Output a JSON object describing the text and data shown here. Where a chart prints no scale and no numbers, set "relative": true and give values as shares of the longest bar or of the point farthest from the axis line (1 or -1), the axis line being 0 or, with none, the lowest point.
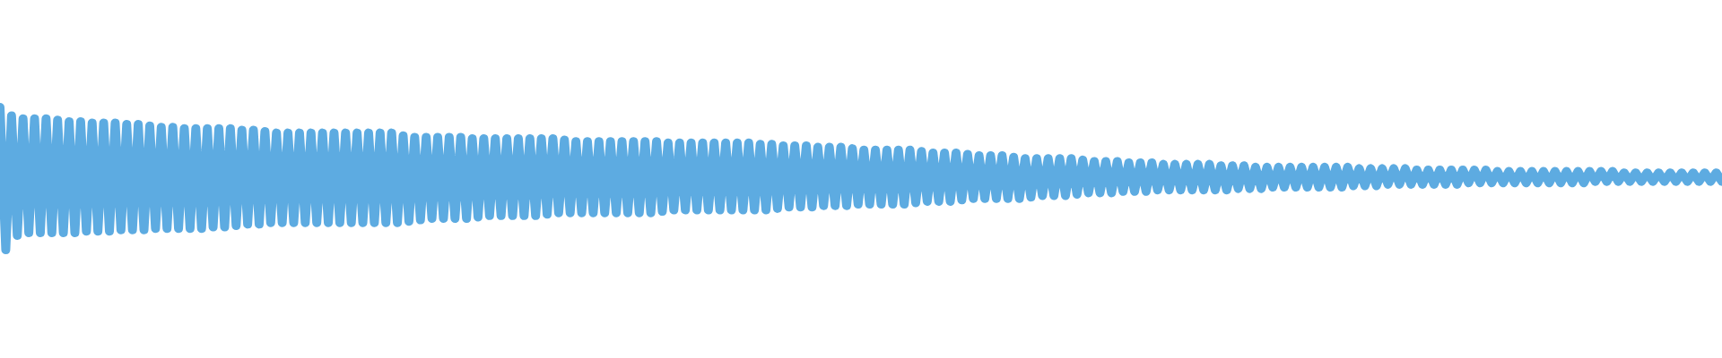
{
  "chart_data": {
    "type": "line",
    "relative": true,
    "color": "#5dabe1",
    "categories": [
      null,
      null,
      null,
      null,
      null,
      null,
      null,
      null,
      null,
      null,
      null,
      null,
      null,
      null,
      null,
      null,
      null,
      null,
      null,
      null,
      null,
      null,
      null,
      null,
      null,
      null,
      null,
      null,
      null,
      null,
      null,
      null,
      null,
      null,
      null,
      null,
      null,
      null,
      null,
      null,
      null,
      null,
      null,
      null,
      null,
      null,
      null,
      null,
      null,
      null,
      null,
      null,
      null,
      null,
      null,
      null,
      null,
      null,
      null,
      null,
      null,
      null,
      null,
      null,
      null,
      null,
      null,
      null,
      null,
      null,
      null,
      null,
      null,
      null,
      null,
      null,
      null,
      null,
      null,
      null,
      null,
      null,
      null,
      null,
      null,
      null,
      null,
      null,
      null,
      null,
      null,
      null,
      null,
      null,
      null,
      null,
      null,
      null,
      null,
      null,
      null,
      null,
      null,
      null,
      null,
      null,
      null,
      null,
      null,
      null,
      null,
      null,
      null,
      null,
      null,
      null,
      null,
      null,
      null,
      null,
      null,
      null,
      null,
      null,
      null,
      null,
      null,
      null,
      null,
      null,
      null,
      null,
      null,
      null,
      null,
      null,
      null,
      null,
      null,
      null,
      null,
      null,
      null,
      null,
      null,
      null,
      null,
      null,
      null,
      null,
      null,
      null,
      null,
      null,
      null,
      null,
      null,
      null,
      null,
      null,
      null,
      null,
      null,
      null,
      null,
      null,
      null,
      null,
      null,
      null,
      null,
      null,
      null,
      null,
      null,
      null,
      null,
      null,
      null,
      null,
      null,
      null,
      null,
      null,
      null,
      null,
      null,
      null,
      null,
      null,
      null,
      null,
      null,
      null,
      null,
      null,
      null,
      null,
      null,
      null,
      null,
      null,
      null,
      null,
      null,
      null,
      null,
      null,
      null,
      null,
      null,
      null,
      null,
      null,
      null,
      null,
      null,
      null,
      null,
      null,
      null,
      null,
      null,
      null,
      null,
      null,
      null,
      null,
      null,
      null,
      null,
      null,
      null,
      null,
      null,
      null,
      null,
      null,
      null,
      null,
      null,
      null,
      null,
      null,
      null,
      null,
      null,
      null,
      null,
      null,
      null,
      null,
      null,
      null,
      null,
      null,
      null,
      null,
      null,
      null,
      null,
      null,
      null,
      null,
      null,
      null,
      null,
      null,
      null,
      null,
      null,
      null,
      null,
      null,
      null,
      null,
      null,
      null,
      null,
      null,
      null,
      null,
      null,
      null,
      null,
      null,
      null,
      null,
      null,
      null,
      null,
      null,
      null,
      null,
      null,
      null,
      null,
      null,
      null,
      null
    ],
    "values": [
      1.0,
      0.0,
      0.94,
      0.1,
      0.92,
      0.12,
      0.92,
      0.12,
      0.92,
      0.12,
      0.91,
      0.12,
      0.9,
      0.12,
      0.9,
      0.13,
      0.89,
      0.13,
      0.89,
      0.13,
      0.89,
      0.14,
      0.88,
      0.14,
      0.88,
      0.14,
      0.87,
      0.15,
      0.86,
      0.15,
      0.86,
      0.15,
      0.85,
      0.15,
      0.85,
      0.15,
      0.85,
      0.16,
      0.85,
      0.16,
      0.85,
      0.17,
      0.84,
      0.18,
      0.84,
      0.18,
      0.83,
      0.19,
      0.82,
      0.19,
      0.82,
      0.19,
      0.82,
      0.19,
      0.82,
      0.19,
      0.82,
      0.19,
      0.82,
      0.19,
      0.82,
      0.19,
      0.82,
      0.19,
      0.82,
      0.19,
      0.82,
      0.19,
      0.82,
      0.19,
      0.8,
      0.2,
      0.79,
      0.21,
      0.79,
      0.22,
      0.79,
      0.22,
      0.79,
      0.22,
      0.79,
      0.22,
      0.78,
      0.23,
      0.78,
      0.24,
      0.78,
      0.24,
      0.78,
      0.24,
      0.78,
      0.24,
      0.78,
      0.24,
      0.78,
      0.25,
      0.78,
      0.26,
      0.77,
      0.26,
      0.76,
      0.26,
      0.76,
      0.26,
      0.76,
      0.26,
      0.76,
      0.26,
      0.76,
      0.26,
      0.76,
      0.26,
      0.76,
      0.26,
      0.76,
      0.27,
      0.75,
      0.28,
      0.75,
      0.28,
      0.75,
      0.28,
      0.75,
      0.28,
      0.75,
      0.28,
      0.75,
      0.28,
      0.75,
      0.28,
      0.75,
      0.28,
      0.74,
      0.28,
      0.74,
      0.29,
      0.73,
      0.3,
      0.73,
      0.3,
      0.73,
      0.3,
      0.72,
      0.31,
      0.72,
      0.31,
      0.72,
      0.31,
      0.71,
      0.32,
      0.7,
      0.32,
      0.7,
      0.32,
      0.7,
      0.32,
      0.7,
      0.32,
      0.7,
      0.33,
      0.69,
      0.34,
      0.68,
      0.34,
      0.68,
      0.34,
      0.68,
      0.35,
      0.67,
      0.36,
      0.66,
      0.36,
      0.66,
      0.36,
      0.66,
      0.36,
      0.65,
      0.36,
      0.64,
      0.37,
      0.64,
      0.38,
      0.64,
      0.38,
      0.64,
      0.38,
      0.64,
      0.39,
      0.63,
      0.4,
      0.62,
      0.4,
      0.62,
      0.4,
      0.62,
      0.41,
      0.61,
      0.41,
      0.61,
      0.41,
      0.61,
      0.42,
      0.6,
      0.42,
      0.6,
      0.42,
      0.6,
      0.42,
      0.6,
      0.42,
      0.6,
      0.42,
      0.59,
      0.42,
      0.59,
      0.43,
      0.59,
      0.43,
      0.58,
      0.43,
      0.58,
      0.44,
      0.58,
      0.44,
      0.58,
      0.44,
      0.58,
      0.44,
      0.58,
      0.44,
      0.58,
      0.44,
      0.58,
      0.44,
      0.58,
      0.45,
      0.57,
      0.45,
      0.57,
      0.45,
      0.57,
      0.46,
      0.57,
      0.46,
      0.57,
      0.46,
      0.56,
      0.46,
      0.56,
      0.46,
      0.56,
      0.46,
      0.56,
      0.46,
      0.56,
      0.47,
      0.56,
      0.47,
      0.56,
      0.47,
      0.55,
      0.47,
      0.55,
      0.47,
      0.55,
      0.47,
      0.55,
      0.47,
      0.55,
      0.47,
      0.55,
      0.47,
      0.55,
      0.47,
      0.55,
      0.47,
      0.55,
      0.48,
      0.55,
      0.48,
      0.55,
      0.48,
      0.54,
      0.48,
      0.54,
      0.48,
      0.54,
      0.48,
      0.54,
      0.48,
      0.54,
      0.48,
      0.54,
      0.48,
      0.54,
      0.48,
      0.54,
      0.48,
      0.54,
      0.48
    ]
  }
}
